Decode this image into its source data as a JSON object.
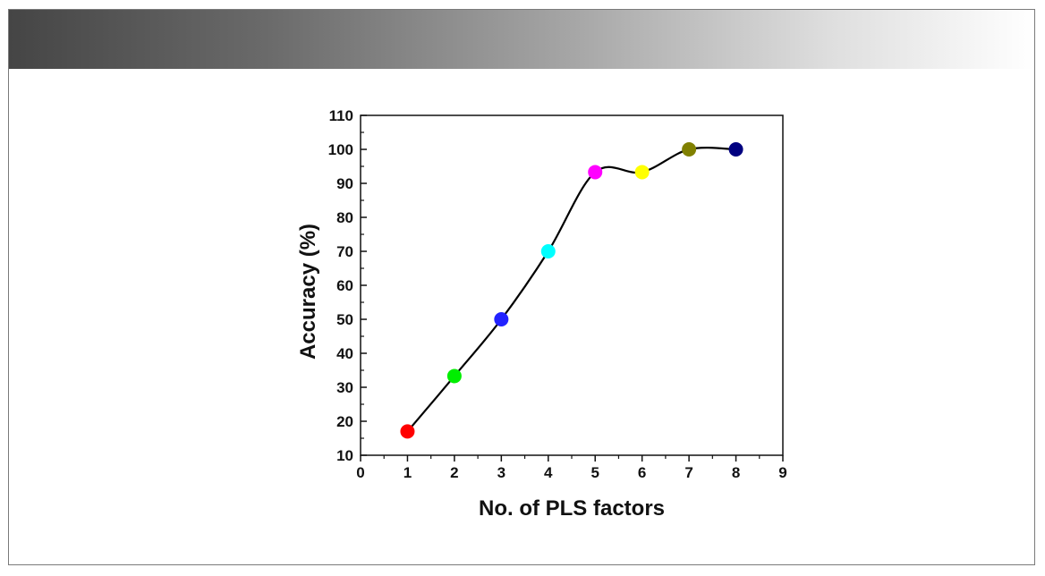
{
  "figure": {
    "header_color_start": "#454545",
    "header_color_end": "#ffffff"
  },
  "chart_data": {
    "type": "scatter",
    "title": "",
    "xlabel": "No. of PLS factors",
    "ylabel": "Accuracy (%)",
    "xlim": [
      0,
      9
    ],
    "ylim": [
      10,
      110
    ],
    "x_ticks": [
      0,
      1,
      2,
      3,
      4,
      5,
      6,
      7,
      8,
      9
    ],
    "y_ticks": [
      10,
      20,
      30,
      40,
      50,
      60,
      70,
      80,
      90,
      100,
      110
    ],
    "grid": false,
    "smooth_line": true,
    "line_color": "#000000",
    "points": [
      {
        "x": 1,
        "y": 17,
        "color": "#ff0000"
      },
      {
        "x": 2,
        "y": 33.3,
        "color": "#00ee00"
      },
      {
        "x": 3,
        "y": 50,
        "color": "#2222ff"
      },
      {
        "x": 4,
        "y": 70,
        "color": "#00ffff"
      },
      {
        "x": 5,
        "y": 93.3,
        "color": "#ff00ff"
      },
      {
        "x": 6,
        "y": 93.3,
        "color": "#ffff00"
      },
      {
        "x": 7,
        "y": 100,
        "color": "#808000"
      },
      {
        "x": 8,
        "y": 100,
        "color": "#000080"
      }
    ]
  }
}
